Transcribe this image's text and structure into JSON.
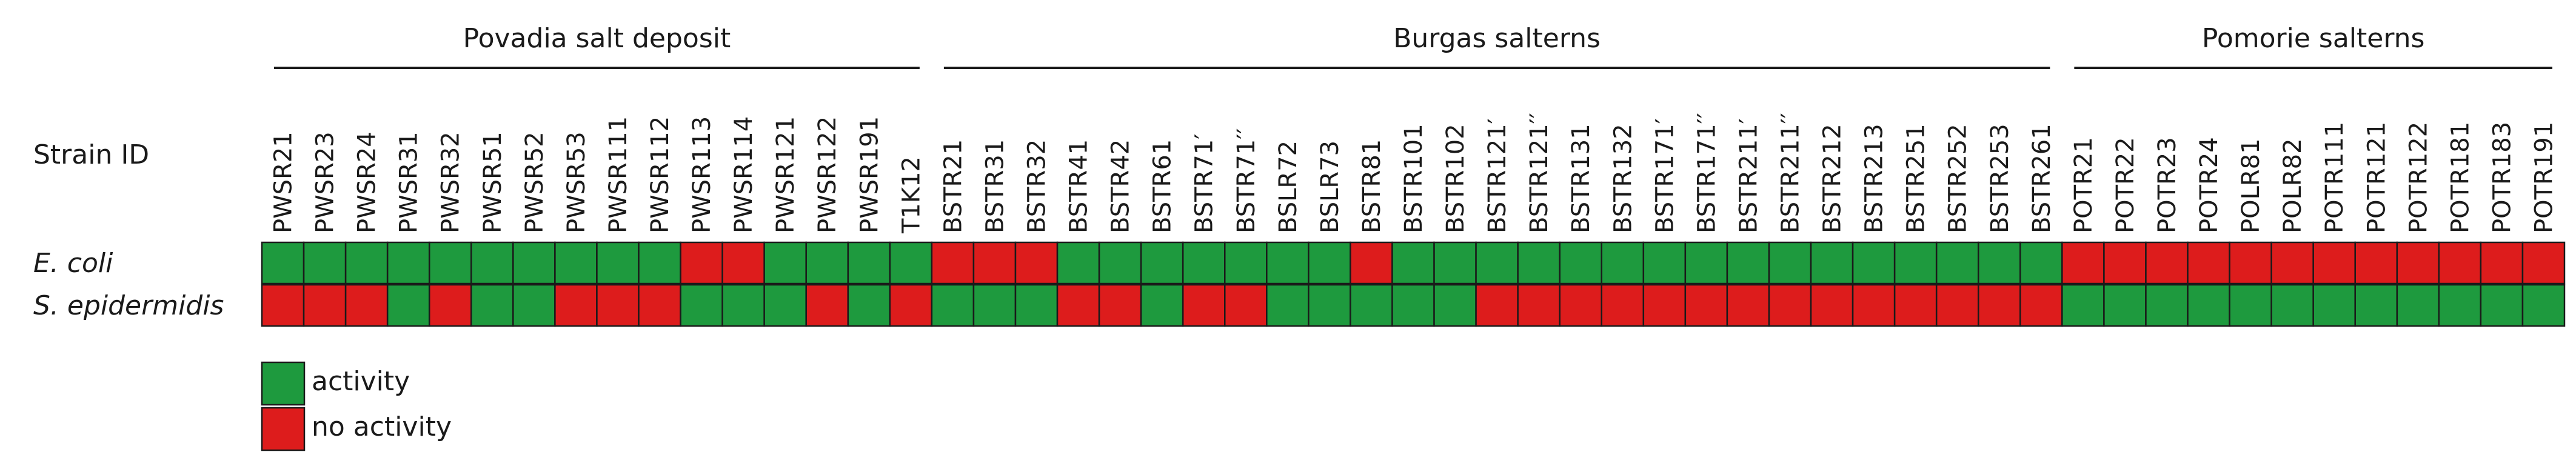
{
  "chart_data": {
    "type": "heatmap",
    "title": "",
    "row_header": "Strain ID",
    "groups": [
      {
        "name": "Povadia salt deposit",
        "start": 0,
        "end": 15
      },
      {
        "name": "Burgas salterns",
        "start": 16,
        "end": 42
      },
      {
        "name": "Pomorie salterns",
        "start": 43,
        "end": 54
      }
    ],
    "strains": [
      "PWSR21",
      "PWSR23",
      "PWSR24",
      "PWSR31",
      "PWSR32",
      "PWSR51",
      "PWSR52",
      "PWSR53",
      "PWSR111",
      "PWSR112",
      "PWSR113",
      "PWSR114",
      "PWSR121",
      "PWSR122",
      "PWSR191",
      "T1K12",
      "BSTR21",
      "BSTR31",
      "BSTR32",
      "BSTR41",
      "BSTR42",
      "BSTR61",
      "BSTR71′",
      "BSTR71′′",
      "BSLR72",
      "BSLR73",
      "BSTR81",
      "BSTR101",
      "BSTR102",
      "BSTR121′",
      "BSTR121′′",
      "BSTR131",
      "BSTR132",
      "BSTR171′",
      "BSTR171′′",
      "BSTR211′",
      "BSTR211′′",
      "BSTR212",
      "BSTR213",
      "BSTR251",
      "BSTR252",
      "BSTR253",
      "BSTR261",
      "POTR21",
      "POTR22",
      "POTR23",
      "POTR24",
      "POLR81",
      "POLR82",
      "POTR111",
      "POTR121",
      "POTR122",
      "POTR181",
      "POTR183",
      "POTR191"
    ],
    "rows": [
      {
        "name": "E. coli",
        "values": [
          1,
          1,
          1,
          1,
          1,
          1,
          1,
          1,
          1,
          1,
          0,
          0,
          1,
          1,
          1,
          1,
          0,
          0,
          0,
          1,
          1,
          1,
          1,
          1,
          1,
          1,
          0,
          1,
          1,
          1,
          1,
          1,
          1,
          1,
          1,
          1,
          1,
          1,
          1,
          1,
          1,
          1,
          1,
          0,
          0,
          0,
          0,
          0,
          0,
          0,
          0,
          0,
          0,
          0,
          0
        ]
      },
      {
        "name": "S. epidermidis",
        "values": [
          0,
          0,
          0,
          1,
          0,
          1,
          1,
          0,
          0,
          0,
          1,
          1,
          1,
          0,
          1,
          0,
          1,
          1,
          1,
          0,
          0,
          1,
          0,
          0,
          1,
          1,
          1,
          1,
          1,
          0,
          0,
          0,
          0,
          0,
          0,
          0,
          0,
          0,
          0,
          0,
          0,
          0,
          0,
          1,
          1,
          1,
          1,
          1,
          1,
          1,
          1,
          1,
          1,
          1,
          1
        ]
      }
    ],
    "legend": [
      {
        "label": "activity",
        "value": 1
      },
      {
        "label": "no activity",
        "value": 0
      }
    ],
    "colors": {
      "activity": "#1e9a3e",
      "no_activity": "#dd1c1c",
      "border": "#1a1a1a",
      "text": "#1a1a1a"
    }
  }
}
